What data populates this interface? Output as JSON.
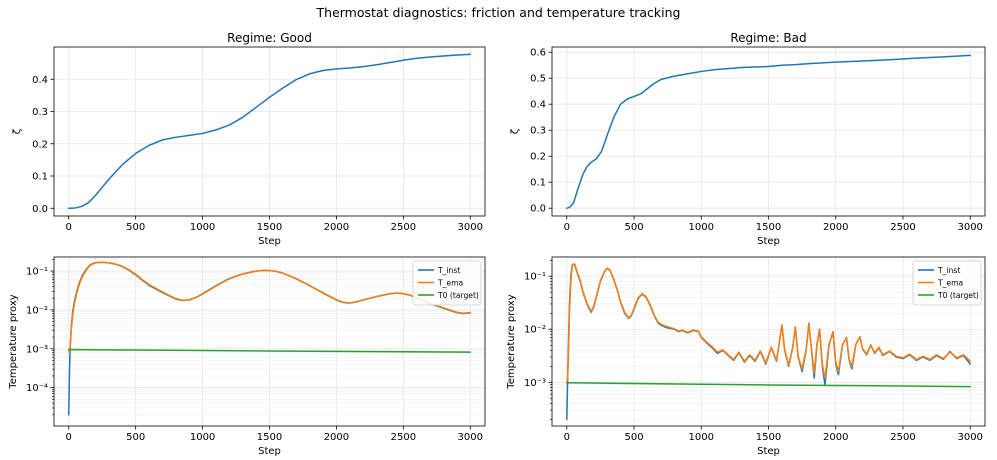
{
  "figure": {
    "title": "Thermostat diagnostics: friction and temperature tracking"
  },
  "colors": {
    "blue": "#1f77b4",
    "orange": "#ff7f0e",
    "green": "#2ca02c",
    "grid": "#e6e6e6"
  },
  "chart_data": [
    {
      "id": "zeta-good",
      "type": "line",
      "title": "Regime: Good",
      "xlabel": "Step",
      "ylabel": "ζ",
      "xlim": [
        -110,
        3110
      ],
      "ylim": [
        -0.024,
        0.5
      ],
      "yscale": "linear",
      "xticks": [
        0,
        500,
        1000,
        1500,
        2000,
        2500,
        3000
      ],
      "xtick_labels": [
        "0",
        "500",
        "1000",
        "1500",
        "2000",
        "2500",
        "3000"
      ],
      "yticks": [
        0.0,
        0.1,
        0.2,
        0.3,
        0.4
      ],
      "ytick_labels": [
        "0.0",
        "0.1",
        "0.2",
        "0.3",
        "0.4"
      ],
      "legend": null,
      "series": [
        {
          "name": "ζ",
          "color": "#1f77b4",
          "x": [
            0,
            50,
            100,
            150,
            200,
            300,
            400,
            500,
            600,
            700,
            800,
            900,
            1000,
            1100,
            1200,
            1300,
            1400,
            1500,
            1600,
            1700,
            1800,
            1900,
            2000,
            2100,
            2200,
            2300,
            2400,
            2500,
            2600,
            2700,
            2800,
            2900,
            3000
          ],
          "y": [
            0.0,
            0.001,
            0.006,
            0.018,
            0.04,
            0.09,
            0.135,
            0.17,
            0.195,
            0.212,
            0.22,
            0.226,
            0.232,
            0.243,
            0.258,
            0.282,
            0.313,
            0.344,
            0.373,
            0.399,
            0.417,
            0.427,
            0.432,
            0.435,
            0.439,
            0.445,
            0.452,
            0.459,
            0.465,
            0.469,
            0.472,
            0.475,
            0.477
          ]
        }
      ]
    },
    {
      "id": "zeta-bad",
      "type": "line",
      "title": "Regime: Bad",
      "xlabel": "Step",
      "ylabel": "ζ",
      "xlim": [
        -110,
        3110
      ],
      "ylim": [
        -0.03,
        0.62
      ],
      "yscale": "linear",
      "xticks": [
        0,
        500,
        1000,
        1500,
        2000,
        2500,
        3000
      ],
      "xtick_labels": [
        "0",
        "500",
        "1000",
        "1500",
        "2000",
        "2500",
        "3000"
      ],
      "yticks": [
        0.0,
        0.1,
        0.2,
        0.3,
        0.4,
        0.5,
        0.6
      ],
      "ytick_labels": [
        "0.0",
        "0.1",
        "0.2",
        "0.3",
        "0.4",
        "0.5",
        "0.6"
      ],
      "legend": null,
      "series": [
        {
          "name": "ζ",
          "color": "#1f77b4",
          "x": [
            0,
            20,
            50,
            80,
            120,
            150,
            180,
            220,
            260,
            300,
            350,
            400,
            450,
            500,
            550,
            600,
            650,
            700,
            800,
            900,
            1000,
            1100,
            1200,
            1300,
            1400,
            1500,
            1600,
            1700,
            1800,
            1900,
            2000,
            2200,
            2400,
            2600,
            2800,
            3000
          ],
          "y": [
            0.0,
            0.003,
            0.02,
            0.07,
            0.13,
            0.16,
            0.176,
            0.19,
            0.22,
            0.28,
            0.35,
            0.4,
            0.42,
            0.43,
            0.44,
            0.46,
            0.48,
            0.495,
            0.508,
            0.517,
            0.526,
            0.533,
            0.537,
            0.541,
            0.543,
            0.545,
            0.55,
            0.552,
            0.556,
            0.559,
            0.562,
            0.566,
            0.571,
            0.577,
            0.582,
            0.588
          ]
        }
      ]
    },
    {
      "id": "temp-good",
      "type": "line",
      "title": "",
      "xlabel": "Step",
      "ylabel": "Temperature proxy",
      "xlim": [
        -110,
        3110
      ],
      "ylim": [
        1.03e-05,
        0.23
      ],
      "yscale": "log",
      "xticks": [
        0,
        500,
        1000,
        1500,
        2000,
        2500,
        3000
      ],
      "xtick_labels": [
        "0",
        "500",
        "1000",
        "1500",
        "2000",
        "2500",
        "3000"
      ],
      "yticks": [
        0.0001,
        0.001,
        0.01,
        0.1
      ],
      "ytick_labels": [
        "10⁻⁴",
        "10⁻³",
        "10⁻²",
        "10⁻¹"
      ],
      "legend": "top-right",
      "series": [
        {
          "name": "T_inst",
          "color": "#1f77b4",
          "x": [
            0,
            3,
            6,
            10,
            15,
            20,
            30,
            40,
            60,
            80,
            100,
            130,
            160,
            200,
            250,
            300,
            350,
            400,
            450,
            500,
            550,
            600,
            700,
            800,
            850,
            900,
            950,
            1000,
            1100,
            1200,
            1300,
            1400,
            1450,
            1500,
            1550,
            1600,
            1700,
            1800,
            1900,
            2000,
            2050,
            2100,
            2150,
            2200,
            2300,
            2400,
            2450,
            2500,
            2550,
            2600,
            2700,
            2800,
            2900,
            2950,
            3000
          ],
          "y": [
            2e-05,
            8e-05,
            0.0003,
            0.0009,
            0.002,
            0.004,
            0.009,
            0.015,
            0.03,
            0.05,
            0.075,
            0.11,
            0.145,
            0.165,
            0.168,
            0.162,
            0.15,
            0.13,
            0.105,
            0.08,
            0.058,
            0.043,
            0.028,
            0.019,
            0.0175,
            0.018,
            0.021,
            0.026,
            0.042,
            0.064,
            0.085,
            0.1,
            0.104,
            0.103,
            0.098,
            0.088,
            0.063,
            0.042,
            0.027,
            0.018,
            0.0155,
            0.015,
            0.016,
            0.018,
            0.022,
            0.026,
            0.027,
            0.026,
            0.024,
            0.02,
            0.0145,
            0.011,
            0.0085,
            0.008,
            0.0084
          ]
        },
        {
          "name": "T_ema",
          "color": "#ff7f0e",
          "x": [
            0,
            5,
            10,
            15,
            20,
            30,
            40,
            60,
            80,
            100,
            130,
            160,
            200,
            250,
            300,
            350,
            400,
            450,
            500,
            550,
            600,
            700,
            800,
            850,
            900,
            950,
            1000,
            1100,
            1200,
            1300,
            1400,
            1450,
            1500,
            1550,
            1600,
            1700,
            1800,
            1900,
            2000,
            2050,
            2100,
            2150,
            2200,
            2300,
            2400,
            2450,
            2500,
            2550,
            2600,
            2700,
            2800,
            2900,
            2950,
            3000
          ],
          "y": [
            0.0009,
            0.0008,
            0.0011,
            0.0019,
            0.0034,
            0.0075,
            0.013,
            0.027,
            0.046,
            0.07,
            0.105,
            0.14,
            0.163,
            0.169,
            0.164,
            0.152,
            0.133,
            0.108,
            0.083,
            0.06,
            0.045,
            0.029,
            0.0195,
            0.0178,
            0.018,
            0.0208,
            0.0255,
            0.041,
            0.063,
            0.084,
            0.099,
            0.1035,
            0.1025,
            0.0978,
            0.0885,
            0.064,
            0.0425,
            0.0275,
            0.0183,
            0.0158,
            0.0152,
            0.0162,
            0.0181,
            0.0222,
            0.0262,
            0.0272,
            0.0262,
            0.0242,
            0.0203,
            0.0148,
            0.0113,
            0.0087,
            0.0082,
            0.0086
          ]
        },
        {
          "name": "T0 (target)",
          "color": "#2ca02c",
          "x": [
            0,
            500,
            1000,
            1500,
            2000,
            2500,
            3000
          ],
          "y": [
            0.00095,
            0.00093,
            0.0009,
            0.00088,
            0.00086,
            0.00084,
            0.00082
          ]
        }
      ]
    },
    {
      "id": "temp-bad",
      "type": "line",
      "title": "",
      "xlabel": "Step",
      "ylabel": "Temperature proxy",
      "xlim": [
        -110,
        3110
      ],
      "ylim": [
        0.00015,
        0.23
      ],
      "yscale": "log",
      "xticks": [
        0,
        500,
        1000,
        1500,
        2000,
        2500,
        3000
      ],
      "xtick_labels": [
        "0",
        "500",
        "1000",
        "1500",
        "2000",
        "2500",
        "3000"
      ],
      "yticks": [
        0.001,
        0.01,
        0.1
      ],
      "ytick_labels": [
        "10⁻³",
        "10⁻²",
        "10⁻¹"
      ],
      "legend": "top-right",
      "series": [
        {
          "name": "T_inst",
          "color": "#1f77b4",
          "x": [
            0,
            5,
            10,
            15,
            20,
            30,
            40,
            50,
            60,
            80,
            100,
            120,
            150,
            180,
            200,
            220,
            250,
            280,
            300,
            320,
            350,
            380,
            400,
            430,
            460,
            480,
            500,
            530,
            560,
            590,
            620,
            650,
            680,
            700,
            730,
            760,
            800,
            830,
            860,
            900,
            940,
            980,
            1000,
            1040,
            1080,
            1120,
            1160,
            1200,
            1240,
            1280,
            1320,
            1360,
            1400,
            1440,
            1480,
            1520,
            1560,
            1580,
            1600,
            1620,
            1650,
            1680,
            1700,
            1720,
            1750,
            1780,
            1800,
            1820,
            1840,
            1860,
            1880,
            1900,
            1920,
            1950,
            1980,
            2000,
            2020,
            2050,
            2080,
            2100,
            2120,
            2150,
            2180,
            2200,
            2230,
            2260,
            2290,
            2320,
            2350,
            2400,
            2450,
            2500,
            2550,
            2600,
            2650,
            2700,
            2750,
            2800,
            2850,
            2900,
            2950,
            3000
          ],
          "y": [
            0.0002,
            0.0008,
            0.003,
            0.01,
            0.03,
            0.1,
            0.16,
            0.17,
            0.16,
            0.11,
            0.08,
            0.05,
            0.03,
            0.021,
            0.026,
            0.04,
            0.08,
            0.12,
            0.14,
            0.13,
            0.085,
            0.05,
            0.032,
            0.02,
            0.016,
            0.018,
            0.024,
            0.038,
            0.046,
            0.04,
            0.028,
            0.018,
            0.013,
            0.012,
            0.011,
            0.0105,
            0.01,
            0.009,
            0.0095,
            0.0085,
            0.0095,
            0.009,
            0.007,
            0.0055,
            0.0045,
            0.0035,
            0.004,
            0.0032,
            0.0026,
            0.0036,
            0.0024,
            0.0032,
            0.0025,
            0.0038,
            0.0022,
            0.0045,
            0.0025,
            0.0055,
            0.012,
            0.004,
            0.002,
            0.0045,
            0.011,
            0.003,
            0.0016,
            0.004,
            0.013,
            0.004,
            0.0012,
            0.005,
            0.01,
            0.002,
            0.0009,
            0.005,
            0.009,
            0.0022,
            0.0014,
            0.005,
            0.007,
            0.0026,
            0.0018,
            0.0052,
            0.0072,
            0.0042,
            0.0033,
            0.005,
            0.0035,
            0.0045,
            0.0032,
            0.0038,
            0.003,
            0.0028,
            0.0033,
            0.0026,
            0.003,
            0.0026,
            0.0032,
            0.0027,
            0.0038,
            0.0028,
            0.0032,
            0.0022
          ]
        },
        {
          "name": "T_ema",
          "color": "#ff7f0e",
          "x": [
            0,
            5,
            10,
            15,
            20,
            30,
            40,
            50,
            60,
            80,
            100,
            120,
            150,
            180,
            200,
            220,
            250,
            280,
            300,
            320,
            350,
            380,
            400,
            430,
            460,
            480,
            500,
            530,
            560,
            590,
            620,
            650,
            680,
            700,
            730,
            760,
            800,
            830,
            860,
            900,
            940,
            980,
            1000,
            1040,
            1080,
            1120,
            1160,
            1200,
            1240,
            1280,
            1320,
            1360,
            1400,
            1440,
            1480,
            1520,
            1560,
            1580,
            1600,
            1620,
            1650,
            1680,
            1700,
            1720,
            1750,
            1780,
            1800,
            1820,
            1840,
            1860,
            1880,
            1900,
            1920,
            1950,
            1980,
            2000,
            2020,
            2050,
            2080,
            2100,
            2120,
            2150,
            2180,
            2200,
            2230,
            2260,
            2290,
            2320,
            2350,
            2400,
            2450,
            2500,
            2550,
            2600,
            2650,
            2700,
            2750,
            2800,
            2850,
            2900,
            2950,
            3000
          ],
          "y": [
            0.001,
            0.0012,
            0.002,
            0.006,
            0.02,
            0.08,
            0.15,
            0.172,
            0.165,
            0.115,
            0.083,
            0.052,
            0.031,
            0.022,
            0.027,
            0.042,
            0.082,
            0.122,
            0.142,
            0.132,
            0.087,
            0.051,
            0.033,
            0.021,
            0.0165,
            0.0185,
            0.025,
            0.039,
            0.047,
            0.041,
            0.029,
            0.0185,
            0.0135,
            0.0125,
            0.0115,
            0.011,
            0.0102,
            0.0092,
            0.0097,
            0.0087,
            0.0097,
            0.0092,
            0.0072,
            0.0057,
            0.0047,
            0.0037,
            0.0041,
            0.0033,
            0.0027,
            0.0037,
            0.0025,
            0.0033,
            0.0026,
            0.0039,
            0.0023,
            0.0046,
            0.0026,
            0.0056,
            0.0118,
            0.0042,
            0.0021,
            0.0046,
            0.0108,
            0.0031,
            0.0018,
            0.0042,
            0.0125,
            0.0042,
            0.0015,
            0.0052,
            0.0098,
            0.0022,
            0.0012,
            0.0052,
            0.0088,
            0.0024,
            0.0016,
            0.0051,
            0.0069,
            0.0027,
            0.002,
            0.0053,
            0.0071,
            0.0043,
            0.0034,
            0.0051,
            0.0036,
            0.0046,
            0.0033,
            0.0039,
            0.0031,
            0.0029,
            0.0034,
            0.0027,
            0.0031,
            0.0027,
            0.0033,
            0.0028,
            0.0037,
            0.0029,
            0.0033,
            0.0025
          ]
        },
        {
          "name": "T0 (target)",
          "color": "#2ca02c",
          "x": [
            0,
            500,
            1000,
            1500,
            2000,
            2500,
            3000
          ],
          "y": [
            0.00098,
            0.00095,
            0.00092,
            0.00089,
            0.00087,
            0.00085,
            0.00083
          ]
        }
      ]
    }
  ]
}
